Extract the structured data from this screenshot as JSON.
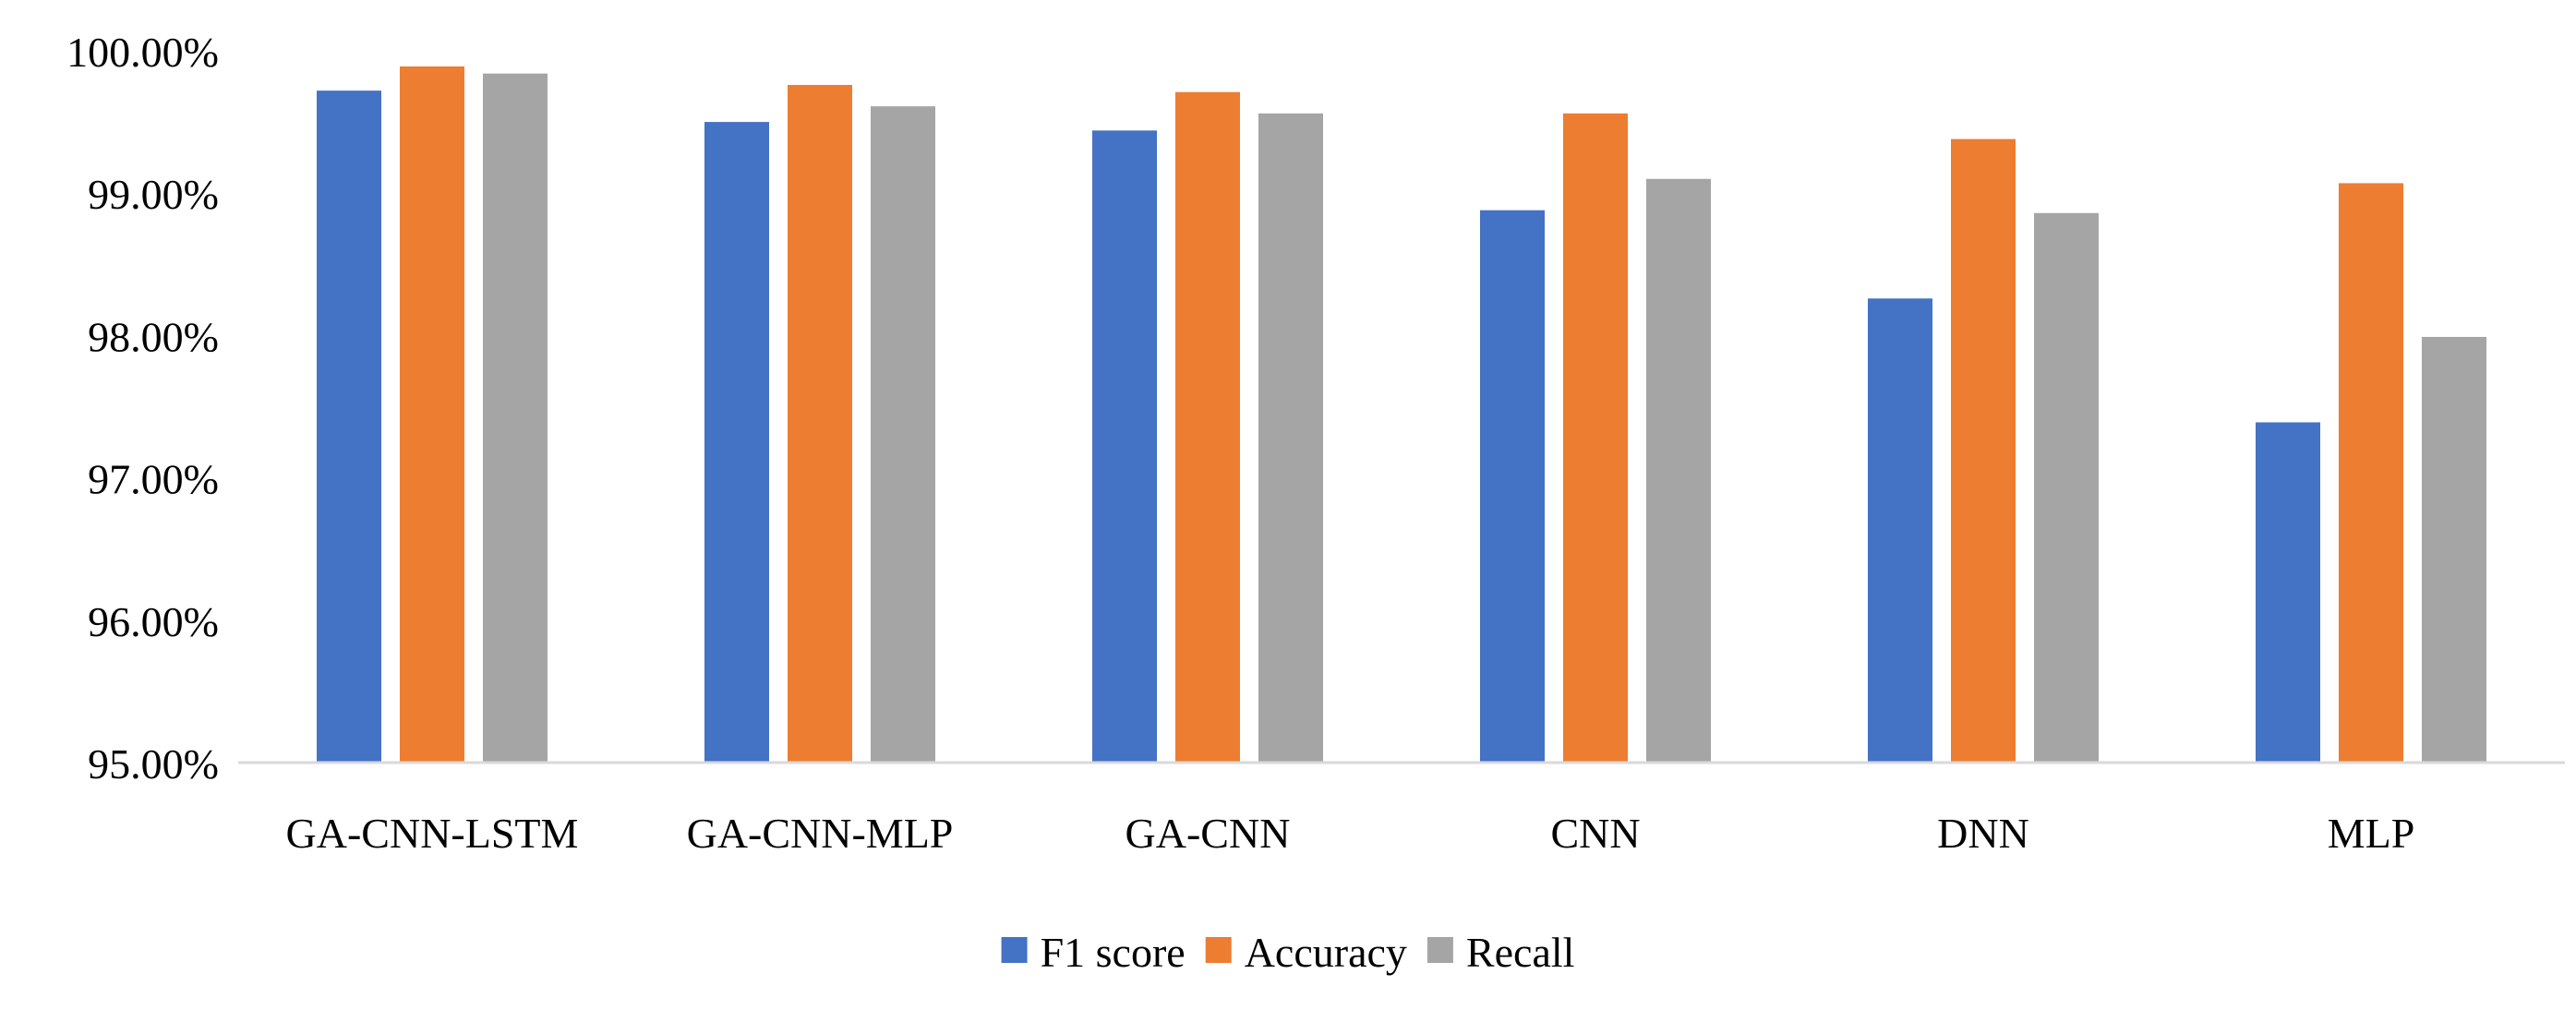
{
  "chart_data": {
    "type": "bar",
    "title": "",
    "xlabel": "",
    "ylabel": "",
    "categories": [
      "GA-CNN-LSTM",
      "GA-CNN-MLP",
      "GA-CNN",
      "CNN",
      "DNN",
      "MLP"
    ],
    "series": [
      {
        "name": "F1 score",
        "color": "#4472C4",
        "values": [
          99.72,
          99.5,
          99.44,
          98.88,
          98.26,
          97.39
        ]
      },
      {
        "name": "Accuracy",
        "color": "#ED7D31",
        "values": [
          99.89,
          99.76,
          99.71,
          99.56,
          99.38,
          99.07
        ]
      },
      {
        "name": "Recall",
        "color": "#A5A5A5",
        "values": [
          99.84,
          99.61,
          99.56,
          99.1,
          98.86,
          97.99
        ]
      }
    ],
    "ylim": [
      95,
      100
    ],
    "yticks": [
      95,
      96,
      97,
      98,
      99,
      100
    ],
    "ytick_labels": [
      "95.00%",
      "96.00%",
      "97.00%",
      "98.00%",
      "99.00%",
      "100.00%"
    ],
    "grid": false,
    "legend_position": "bottom-center",
    "axis_color": "#D9D9D9"
  }
}
